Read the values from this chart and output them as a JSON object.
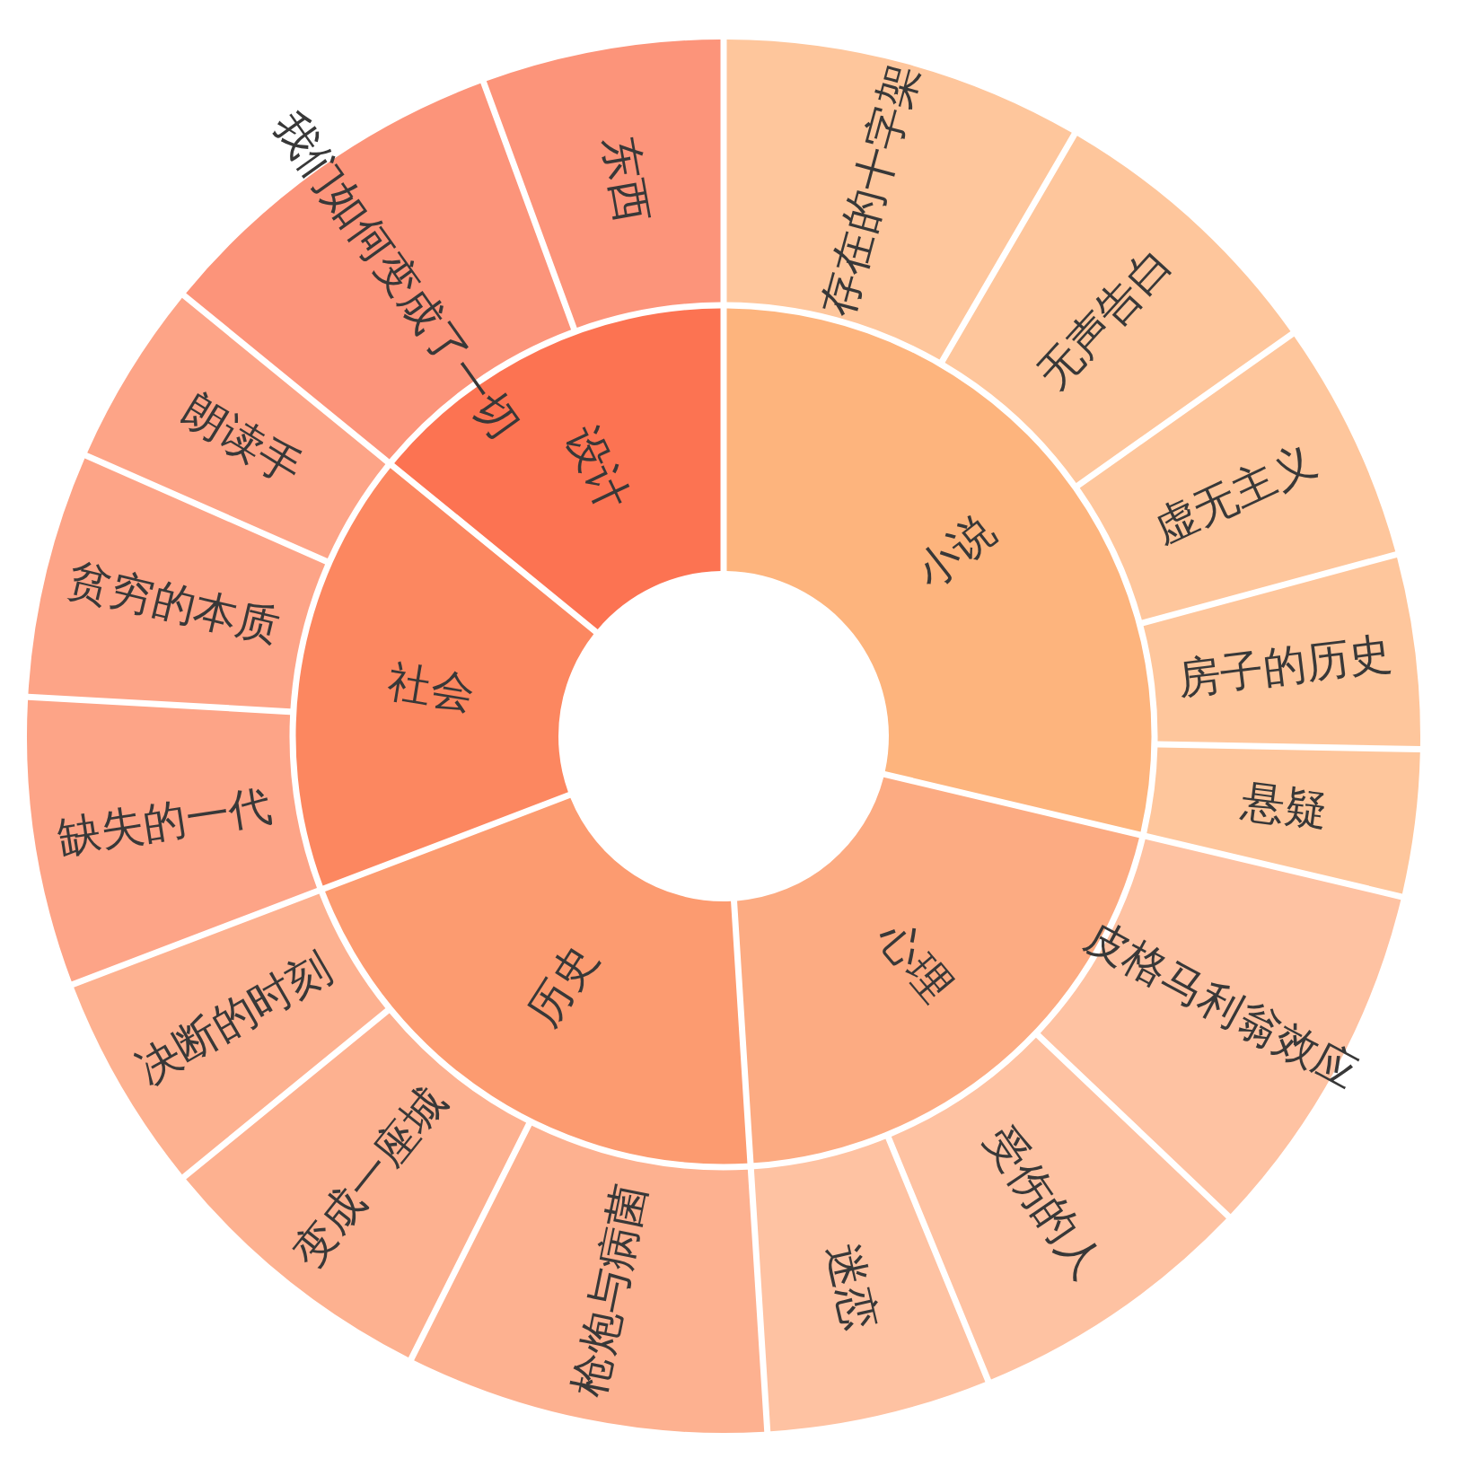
{
  "chart_data": [
    {
      "type": "donut",
      "categories": [
        "小说",
        "心理",
        "历史",
        "社会",
        "设计"
      ],
      "values": [
        28.7,
        20.3,
        20.2,
        16.7,
        14.1
      ],
      "colors": [
        "#fdb47d",
        "#fcab82",
        "#fc9b70",
        "#fc8760",
        "#fc7352"
      ]
    },
    {
      "type": "donut",
      "categories": [
        "存在的十字架",
        "无声告白",
        "虚无主义",
        "房子的历史",
        "悬疑",
        "皮格马利翁效应",
        "受伤的人",
        "迷恋",
        "枪炮与病菌",
        "变成一座城",
        "决断的时刻",
        "缺失的一代",
        "贫穷的本质",
        "朗读手",
        "我们如何变成了一切",
        "东西"
      ],
      "values": [
        8.4,
        6.8,
        5.6,
        4.5,
        3.4,
        8.4,
        6.7,
        5.2,
        8.4,
        6.7,
        5.1,
        6.7,
        5.7,
        4.3,
        8.5,
        5.6
      ],
      "colors": [
        "#fec69c",
        "#fec69c",
        "#fec69c",
        "#fec69c",
        "#fec69c",
        "#fec2a2",
        "#fec2a2",
        "#fec2a2",
        "#fdb190",
        "#fdb190",
        "#fdb190",
        "#fda487",
        "#fda487",
        "#fda487",
        "#fc947a",
        "#fc947a"
      ]
    }
  ]
}
